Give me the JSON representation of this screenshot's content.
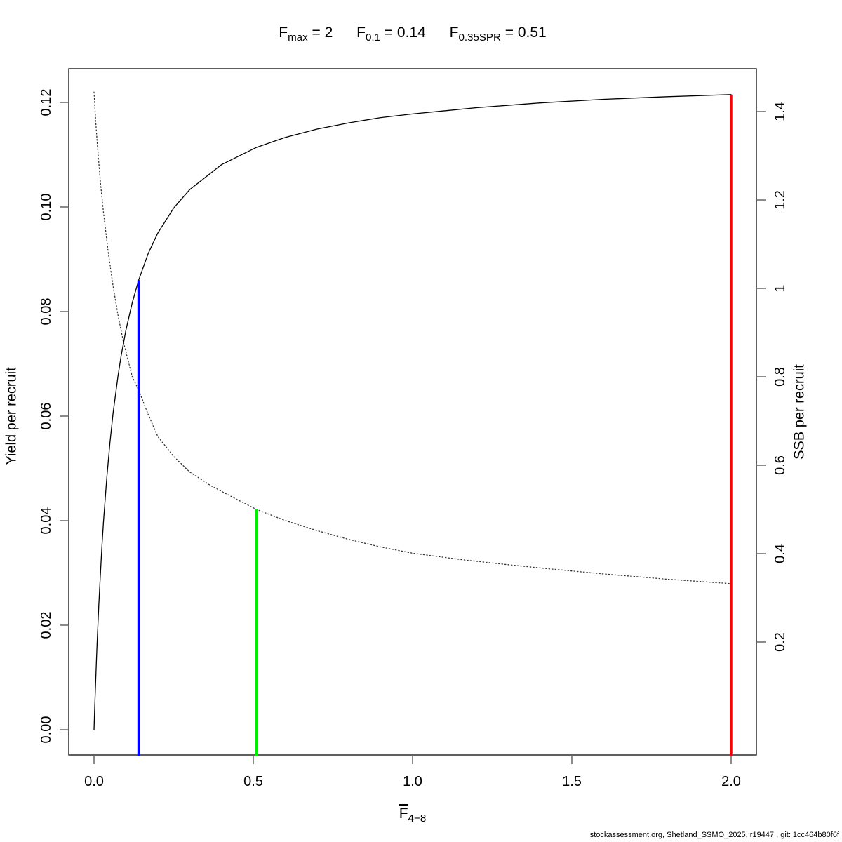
{
  "header": {
    "parts": [
      {
        "base": "F",
        "sub": "max",
        "eq": " = 2"
      },
      {
        "base": "F",
        "sub": "0.1",
        "eq": " = 0.14"
      },
      {
        "base": "F",
        "sub": "0.35SPR",
        "eq": " = 0.51"
      }
    ]
  },
  "footer": {
    "credit": "stockassessment.org, Shetland_SSMO_2025, r19447 , git: 1cc464b80f6f"
  },
  "chart_data": {
    "type": "line",
    "title": "F_max = 2    F_0.1 = 0.14    F_0.35SPR = 0.51",
    "reference_points": {
      "F_max": 2,
      "F_0.1": 0.14,
      "F_0.35SPR": 0.51
    },
    "grid": false,
    "legend": false,
    "x_axis": {
      "label_base": "F",
      "label_sub": "4−8",
      "min": 0,
      "max": 2,
      "ticks": [
        {
          "v": 0.0,
          "label": "0.0"
        },
        {
          "v": 0.5,
          "label": "0.5"
        },
        {
          "v": 1.0,
          "label": "1.0"
        },
        {
          "v": 1.5,
          "label": "1.5"
        },
        {
          "v": 2.0,
          "label": "2.0"
        }
      ]
    },
    "y_left_axis": {
      "label": "Yield per recruit",
      "min": 0,
      "max": 0.1215,
      "ticks": [
        {
          "v": 0.0,
          "label": "0.00"
        },
        {
          "v": 0.02,
          "label": "0.02"
        },
        {
          "v": 0.04,
          "label": "0.04"
        },
        {
          "v": 0.06,
          "label": "0.06"
        },
        {
          "v": 0.08,
          "label": "0.08"
        },
        {
          "v": 0.1,
          "label": "0.10"
        },
        {
          "v": 0.12,
          "label": "0.12"
        }
      ]
    },
    "y_right_axis": {
      "label": "SSB per recruit",
      "min": 0.332,
      "max": 1.444,
      "ticks": [
        {
          "v": 0.2,
          "label": "0.2"
        },
        {
          "v": 0.4,
          "label": "0.4"
        },
        {
          "v": 0.6,
          "label": "0.6"
        },
        {
          "v": 0.8,
          "label": "0.8"
        },
        {
          "v": 1.0,
          "label": "1"
        },
        {
          "v": 1.2,
          "label": "1.2"
        },
        {
          "v": 1.4,
          "label": "1.4"
        }
      ]
    },
    "series": [
      {
        "name": "Yield per recruit",
        "axis": "left",
        "line_style": "solid",
        "color": "#000000",
        "x": [
          0,
          0.0025,
          0.005,
          0.0075,
          0.01,
          0.015,
          0.02,
          0.025,
          0.03,
          0.04,
          0.05,
          0.06,
          0.075,
          0.085,
          0.1,
          0.12,
          0.14,
          0.17,
          0.2,
          0.25,
          0.3,
          0.4,
          0.51,
          0.6,
          0.7,
          0.8,
          0.9,
          1,
          1.2,
          1.4,
          1.6,
          1.8,
          2
        ],
        "y": [
          0,
          0.0047,
          0.0091,
          0.0131,
          0.0169,
          0.0238,
          0.0298,
          0.0352,
          0.04,
          0.0482,
          0.0549,
          0.0606,
          0.0676,
          0.0715,
          0.0764,
          0.0817,
          0.086,
          0.0911,
          0.095,
          0.0998,
          0.1033,
          0.1081,
          0.1114,
          0.1133,
          0.1149,
          0.1161,
          0.1171,
          0.1178,
          0.119,
          0.1199,
          0.1206,
          0.1211,
          0.1215
        ]
      },
      {
        "name": "SSB per recruit",
        "axis": "right",
        "line_style": "dotted",
        "color": "#000000",
        "x": [
          0,
          0.005,
          0.01,
          0.02,
          0.03,
          0.045,
          0.06,
          0.075,
          0.0925,
          0.12,
          0.14,
          0.17,
          0.2,
          0.25,
          0.3,
          0.366,
          0.45,
          0.51,
          0.6,
          0.7,
          0.8,
          0.9,
          1,
          1.158,
          1.3,
          1.423,
          1.6,
          1.8,
          2
        ],
        "y": [
          1.444,
          1.38,
          1.33,
          1.24,
          1.17,
          1.08,
          1.005,
          0.94,
          0.878,
          0.8,
          0.77,
          0.715,
          0.665,
          0.62,
          0.585,
          0.554,
          0.522,
          0.5,
          0.475,
          0.452,
          0.432,
          0.415,
          0.401,
          0.386,
          0.375,
          0.366,
          0.354,
          0.342,
          0.332
        ]
      }
    ],
    "reference_lines": [
      {
        "name": "F_0.1",
        "x": 0.14,
        "color": "#0000ff",
        "top_value": 0.086,
        "top_axis": "left"
      },
      {
        "name": "F_0.35SPR",
        "x": 0.51,
        "color": "#00ee00",
        "top_value": 0.5,
        "top_axis": "right"
      },
      {
        "name": "F_max",
        "x": 2,
        "color": "#ff0000",
        "top_value": 0.1215,
        "top_axis": "left"
      }
    ]
  }
}
